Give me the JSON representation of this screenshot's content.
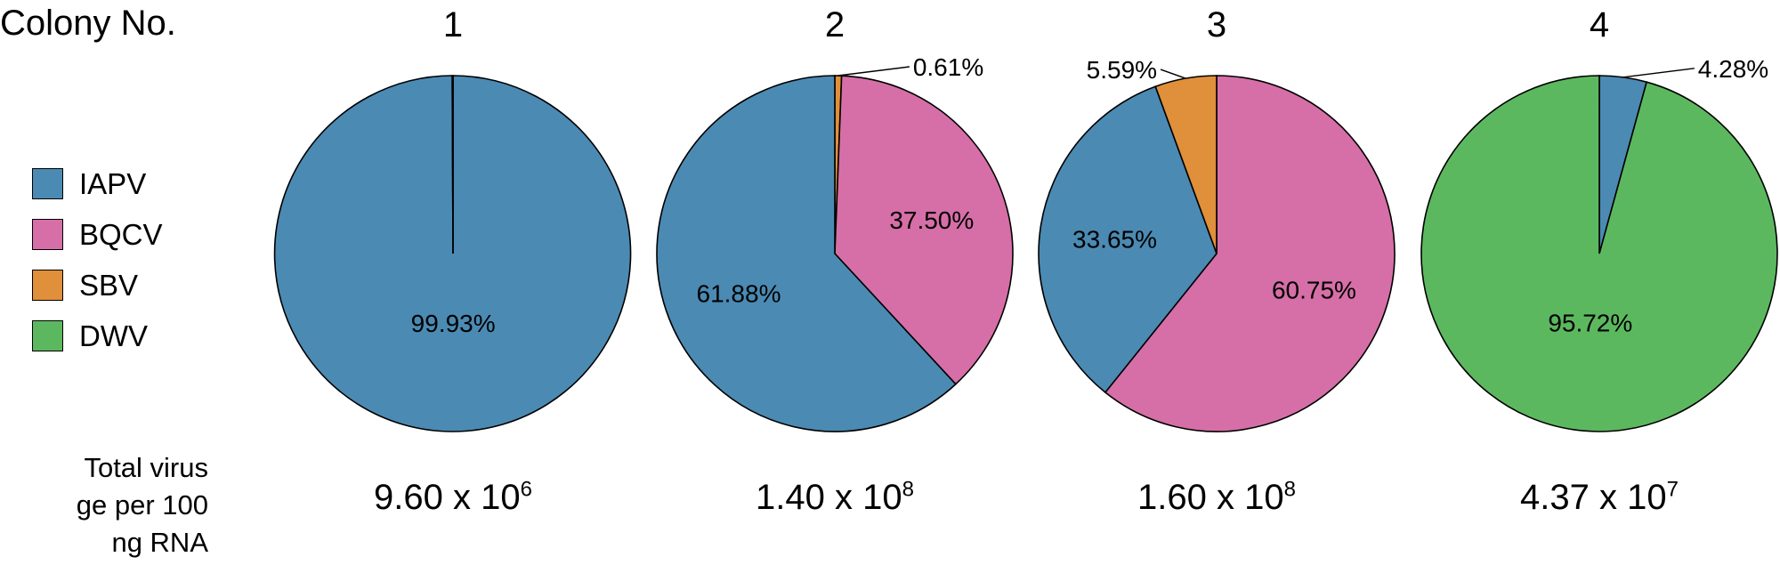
{
  "row_label": "Colony No.",
  "total_label_lines": [
    "Total virus",
    "ge per 100",
    "ng RNA"
  ],
  "legend": [
    {
      "key": "IAPV",
      "label": "IAPV",
      "color": "#4b8ab3"
    },
    {
      "key": "BQCV",
      "label": "BQCV",
      "color": "#d66fa7"
    },
    {
      "key": "SBV",
      "label": "SBV",
      "color": "#e08f3a"
    },
    {
      "key": "DWV",
      "label": "DWV",
      "color": "#5cb85f"
    }
  ],
  "chart_data": [
    {
      "type": "pie",
      "colony": "1",
      "total_mantissa": "9.60 x 10",
      "total_exponent": "6",
      "slices": [
        {
          "virus": "IAPV",
          "value": 99.93,
          "label": "99.93%"
        },
        {
          "virus": "BQCV",
          "value": 0.07,
          "label": ""
        }
      ]
    },
    {
      "type": "pie",
      "colony": "2",
      "total_mantissa": "1.40 x 10",
      "total_exponent": "8",
      "slices": [
        {
          "virus": "SBV",
          "value": 0.61,
          "label": "0.61%"
        },
        {
          "virus": "BQCV",
          "value": 37.5,
          "label": "37.50%"
        },
        {
          "virus": "IAPV",
          "value": 61.88,
          "label": "61.88%"
        }
      ]
    },
    {
      "type": "pie",
      "colony": "3",
      "total_mantissa": "1.60 x 10",
      "total_exponent": "8",
      "slices": [
        {
          "virus": "BQCV",
          "value": 60.75,
          "label": "60.75%"
        },
        {
          "virus": "IAPV",
          "value": 33.65,
          "label": "33.65%"
        },
        {
          "virus": "SBV",
          "value": 5.59,
          "label": "5.59%"
        }
      ]
    },
    {
      "type": "pie",
      "colony": "4",
      "total_mantissa": "4.37 x 10",
      "total_exponent": "7",
      "slices": [
        {
          "virus": "IAPV",
          "value": 4.28,
          "label": "4.28%"
        },
        {
          "virus": "DWV",
          "value": 95.72,
          "label": "95.72%"
        }
      ]
    }
  ]
}
